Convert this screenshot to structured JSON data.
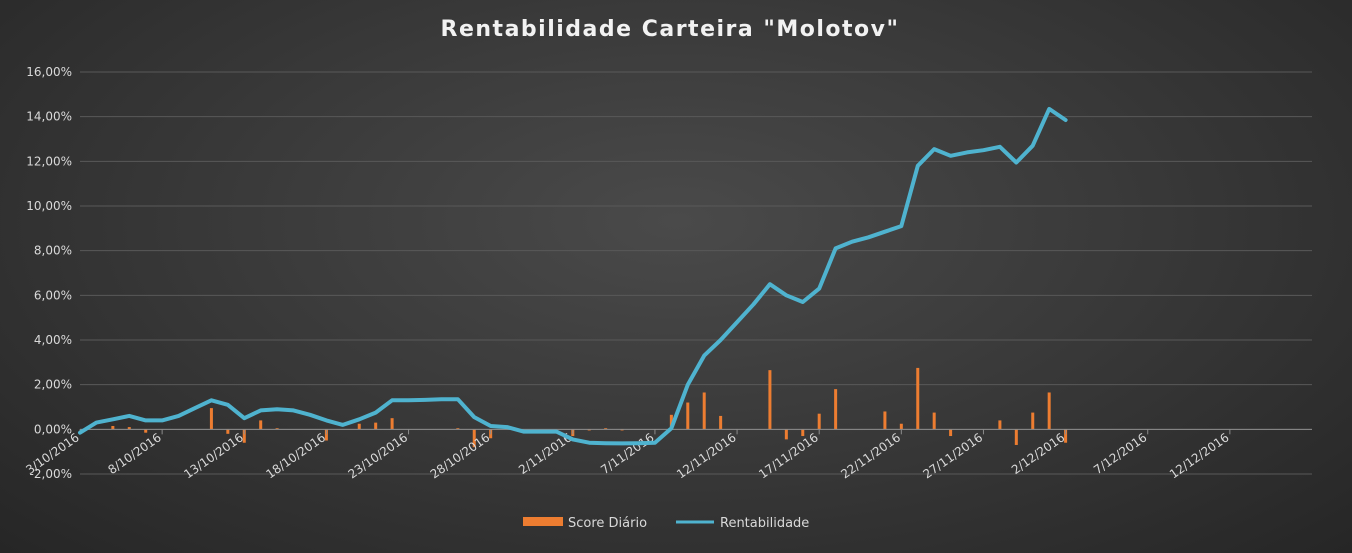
{
  "chart_data": {
    "type": "bar+line",
    "title": "Rentabilidade  Carteira  \"Molotov\"",
    "xlabel": "",
    "ylabel": "",
    "ylim": [
      -0.02,
      0.16
    ],
    "y_ticks": [
      "-2,00%",
      "0,00%",
      "2,00%",
      "4,00%",
      "6,00%",
      "8,00%",
      "10,00%",
      "12,00%",
      "14,00%",
      "16,00%"
    ],
    "x_ticks": [
      "3/10/2016",
      "8/10/2016",
      "13/10/2016",
      "18/10/2016",
      "23/10/2016",
      "28/10/2016",
      "2/11/2016",
      "7/11/2016",
      "12/11/2016",
      "17/11/2016",
      "22/11/2016",
      "27/11/2016",
      "2/12/2016",
      "7/12/2016",
      "12/12/2016"
    ],
    "x_range": [
      "2016-10-03",
      "2016-12-17"
    ],
    "grid": true,
    "legend_position": "bottom",
    "colors": {
      "bar": "#ed7d31",
      "line": "#4fb3cf",
      "background": "#3a3a3a",
      "grid": "#595959"
    },
    "series": [
      {
        "name": "Score Diário",
        "type": "bar",
        "points": [
          {
            "date": "2016-10-05",
            "value": 0.0015
          },
          {
            "date": "2016-10-06",
            "value": 0.001
          },
          {
            "date": "2016-10-07",
            "value": -0.0015
          },
          {
            "date": "2016-10-11",
            "value": 0.0095
          },
          {
            "date": "2016-10-12",
            "value": -0.002
          },
          {
            "date": "2016-10-13",
            "value": -0.006
          },
          {
            "date": "2016-10-14",
            "value": 0.004
          },
          {
            "date": "2016-10-15",
            "value": 0.0005
          },
          {
            "date": "2016-10-18",
            "value": -0.005
          },
          {
            "date": "2016-10-20",
            "value": 0.0025
          },
          {
            "date": "2016-10-21",
            "value": 0.003
          },
          {
            "date": "2016-10-22",
            "value": 0.005
          },
          {
            "date": "2016-10-26",
            "value": 0.0005
          },
          {
            "date": "2016-10-27",
            "value": -0.008
          },
          {
            "date": "2016-10-28",
            "value": -0.004
          },
          {
            "date": "2016-11-02",
            "value": -0.003
          },
          {
            "date": "2016-11-03",
            "value": -0.0005
          },
          {
            "date": "2016-11-04",
            "value": 0.0005
          },
          {
            "date": "2016-11-05",
            "value": -0.0005
          },
          {
            "date": "2016-11-08",
            "value": 0.0065
          },
          {
            "date": "2016-11-09",
            "value": 0.012
          },
          {
            "date": "2016-11-10",
            "value": 0.0165
          },
          {
            "date": "2016-11-11",
            "value": 0.006
          },
          {
            "date": "2016-11-14",
            "value": 0.0265
          },
          {
            "date": "2016-11-15",
            "value": -0.0045
          },
          {
            "date": "2016-11-16",
            "value": -0.003
          },
          {
            "date": "2016-11-17",
            "value": 0.007
          },
          {
            "date": "2016-11-18",
            "value": 0.018
          },
          {
            "date": "2016-11-21",
            "value": 0.008
          },
          {
            "date": "2016-11-22",
            "value": 0.0025
          },
          {
            "date": "2016-11-23",
            "value": 0.0275
          },
          {
            "date": "2016-11-24",
            "value": 0.0075
          },
          {
            "date": "2016-11-25",
            "value": -0.003
          },
          {
            "date": "2016-11-28",
            "value": 0.004
          },
          {
            "date": "2016-11-29",
            "value": -0.007
          },
          {
            "date": "2016-11-30",
            "value": 0.0075
          },
          {
            "date": "2016-12-01",
            "value": 0.0165
          },
          {
            "date": "2016-12-02",
            "value": -0.006
          }
        ]
      },
      {
        "name": "Rentabilidade",
        "type": "line",
        "points": [
          {
            "date": "2016-10-03",
            "value": -0.0015
          },
          {
            "date": "2016-10-04",
            "value": 0.003
          },
          {
            "date": "2016-10-05",
            "value": 0.0045
          },
          {
            "date": "2016-10-06",
            "value": 0.006
          },
          {
            "date": "2016-10-07",
            "value": 0.004
          },
          {
            "date": "2016-10-08",
            "value": 0.004
          },
          {
            "date": "2016-10-09",
            "value": 0.006
          },
          {
            "date": "2016-10-10",
            "value": 0.0095
          },
          {
            "date": "2016-10-11",
            "value": 0.013
          },
          {
            "date": "2016-10-12",
            "value": 0.011
          },
          {
            "date": "2016-10-13",
            "value": 0.005
          },
          {
            "date": "2016-10-14",
            "value": 0.0085
          },
          {
            "date": "2016-10-15",
            "value": 0.009
          },
          {
            "date": "2016-10-16",
            "value": 0.0085
          },
          {
            "date": "2016-10-17",
            "value": 0.0065
          },
          {
            "date": "2016-10-18",
            "value": 0.004
          },
          {
            "date": "2016-10-19",
            "value": 0.002
          },
          {
            "date": "2016-10-20",
            "value": 0.0045
          },
          {
            "date": "2016-10-21",
            "value": 0.0075
          },
          {
            "date": "2016-10-22",
            "value": 0.013
          },
          {
            "date": "2016-10-23",
            "value": 0.013
          },
          {
            "date": "2016-10-24",
            "value": 0.0132
          },
          {
            "date": "2016-10-25",
            "value": 0.0135
          },
          {
            "date": "2016-10-26",
            "value": 0.0135
          },
          {
            "date": "2016-10-27",
            "value": 0.0055
          },
          {
            "date": "2016-10-28",
            "value": 0.0015
          },
          {
            "date": "2016-10-29",
            "value": 0.001
          },
          {
            "date": "2016-10-30",
            "value": -0.001
          },
          {
            "date": "2016-10-31",
            "value": -0.001
          },
          {
            "date": "2016-11-01",
            "value": -0.001
          },
          {
            "date": "2016-11-02",
            "value": -0.0045
          },
          {
            "date": "2016-11-03",
            "value": -0.006
          },
          {
            "date": "2016-11-04",
            "value": -0.0062
          },
          {
            "date": "2016-11-05",
            "value": -0.0063
          },
          {
            "date": "2016-11-06",
            "value": -0.0062
          },
          {
            "date": "2016-11-07",
            "value": -0.006
          },
          {
            "date": "2016-11-08",
            "value": 0.0005
          },
          {
            "date": "2016-11-09",
            "value": 0.02
          },
          {
            "date": "2016-11-10",
            "value": 0.033
          },
          {
            "date": "2016-11-11",
            "value": 0.04
          },
          {
            "date": "2016-11-12",
            "value": 0.048
          },
          {
            "date": "2016-11-13",
            "value": 0.056
          },
          {
            "date": "2016-11-14",
            "value": 0.065
          },
          {
            "date": "2016-11-15",
            "value": 0.06
          },
          {
            "date": "2016-11-16",
            "value": 0.057
          },
          {
            "date": "2016-11-17",
            "value": 0.063
          },
          {
            "date": "2016-11-18",
            "value": 0.081
          },
          {
            "date": "2016-11-19",
            "value": 0.084
          },
          {
            "date": "2016-11-20",
            "value": 0.086
          },
          {
            "date": "2016-11-21",
            "value": 0.0885
          },
          {
            "date": "2016-11-22",
            "value": 0.091
          },
          {
            "date": "2016-11-23",
            "value": 0.118
          },
          {
            "date": "2016-11-24",
            "value": 0.1255
          },
          {
            "date": "2016-11-25",
            "value": 0.1225
          },
          {
            "date": "2016-11-26",
            "value": 0.124
          },
          {
            "date": "2016-11-27",
            "value": 0.125
          },
          {
            "date": "2016-11-28",
            "value": 0.1265
          },
          {
            "date": "2016-11-29",
            "value": 0.1195
          },
          {
            "date": "2016-11-30",
            "value": 0.127
          },
          {
            "date": "2016-12-01",
            "value": 0.1435
          },
          {
            "date": "2016-12-02",
            "value": 0.1385
          }
        ]
      }
    ]
  }
}
